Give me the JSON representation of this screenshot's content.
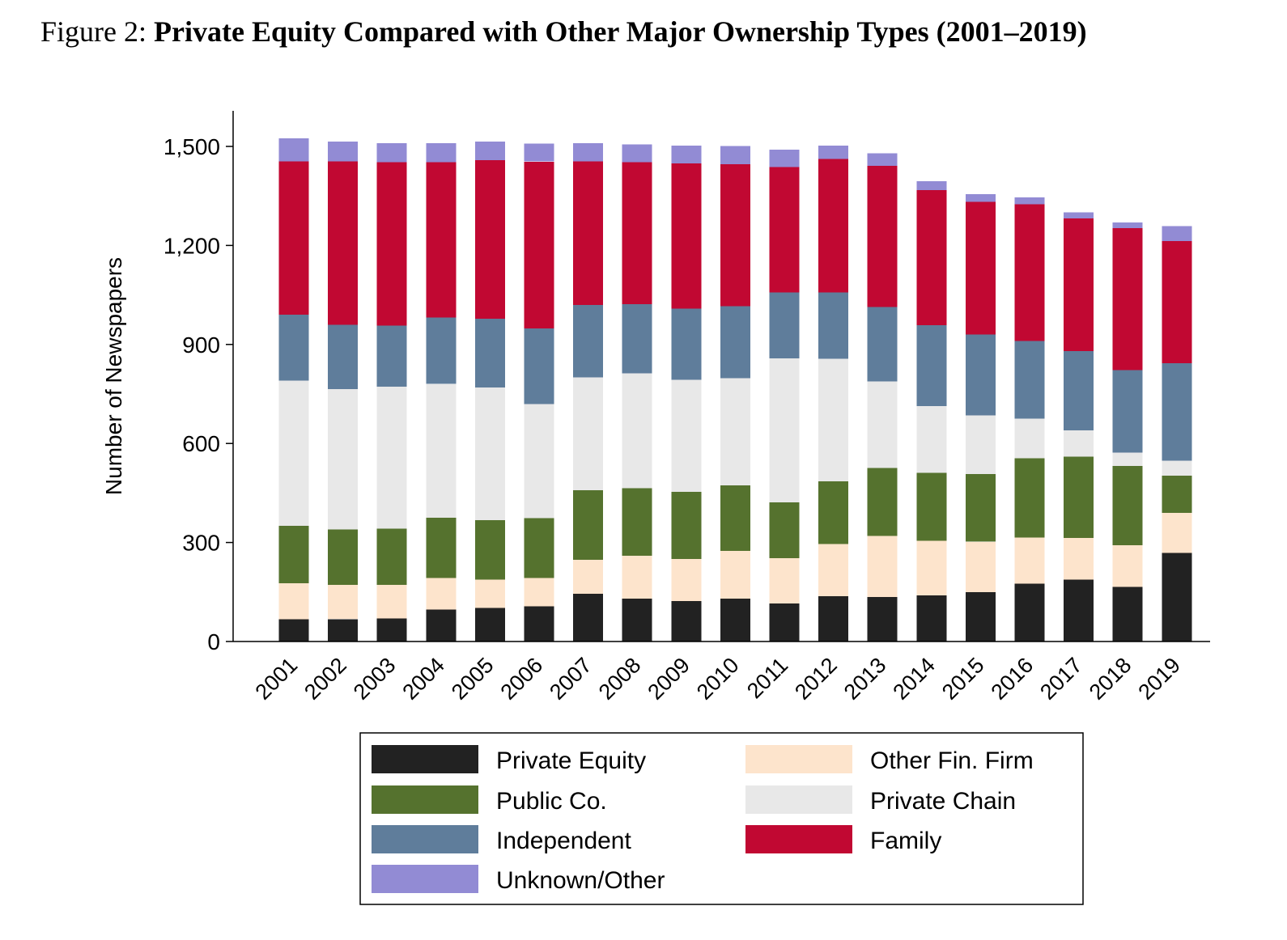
{
  "figure": {
    "prefix": "Figure 2: ",
    "title": "Private Equity Compared with Other Major Ownership Types (2001–2019)"
  },
  "chart_data": {
    "type": "bar",
    "stacked": true,
    "title": "Private Equity Compared with Other Major Ownership Types (2001–2019)",
    "xlabel": "",
    "ylabel": "Number of Newspapers",
    "ylim": [
      0,
      1600
    ],
    "yticks": [
      0,
      300,
      600,
      900,
      1200,
      1500
    ],
    "ytick_labels": [
      "0",
      "300",
      "600",
      "900",
      "1,200",
      "1,500"
    ],
    "grid": false,
    "legend_position": "bottom",
    "categories": [
      "2001",
      "2002",
      "2003",
      "2004",
      "2005",
      "2006",
      "2007",
      "2008",
      "2009",
      "2010",
      "2011",
      "2012",
      "2013",
      "2014",
      "2015",
      "2016",
      "2017",
      "2018",
      "2019"
    ],
    "series": [
      {
        "name": "Private Equity",
        "color": "#222222",
        "values": [
          68,
          68,
          70,
          97,
          102,
          107,
          145,
          130,
          123,
          130,
          115,
          137,
          135,
          140,
          150,
          175,
          188,
          165,
          268
        ]
      },
      {
        "name": "Other Fin. Firm",
        "color": "#fde4cc",
        "values": [
          108,
          104,
          102,
          96,
          86,
          85,
          103,
          130,
          127,
          145,
          137,
          158,
          185,
          165,
          152,
          140,
          126,
          127,
          122
        ]
      },
      {
        "name": "Public Co.",
        "color": "#55722e",
        "values": [
          174,
          168,
          170,
          182,
          180,
          182,
          210,
          204,
          203,
          198,
          170,
          190,
          206,
          206,
          205,
          240,
          246,
          240,
          112
        ]
      },
      {
        "name": "Private Chain",
        "color": "#e8e8e8",
        "values": [
          440,
          425,
          430,
          405,
          402,
          345,
          342,
          348,
          340,
          325,
          436,
          372,
          262,
          202,
          178,
          120,
          80,
          40,
          46
        ]
      },
      {
        "name": "Independent",
        "color": "#5f7d9b",
        "values": [
          200,
          195,
          185,
          202,
          208,
          230,
          220,
          210,
          215,
          218,
          200,
          200,
          225,
          245,
          245,
          235,
          240,
          250,
          295
        ]
      },
      {
        "name": "Family",
        "color": "#c10832",
        "values": [
          465,
          495,
          495,
          470,
          480,
          505,
          435,
          430,
          440,
          430,
          380,
          405,
          428,
          410,
          402,
          415,
          402,
          430,
          370
        ]
      },
      {
        "name": "Unknown/Other",
        "color": "#928bd4",
        "values": [
          70,
          60,
          58,
          58,
          57,
          55,
          55,
          54,
          55,
          55,
          52,
          40,
          38,
          27,
          23,
          20,
          18,
          18,
          45
        ]
      }
    ],
    "legend_order": [
      "Private Equity",
      "Other Fin. Firm",
      "Public Co.",
      "Private Chain",
      "Independent",
      "Family",
      "Unknown/Other"
    ]
  }
}
